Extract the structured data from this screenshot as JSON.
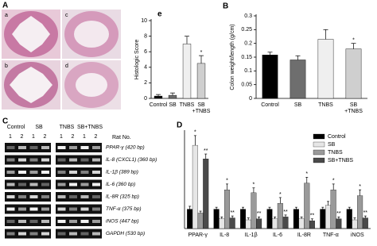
{
  "histology": {
    "panel_label": "A",
    "images": [
      "a",
      "b",
      "c",
      "d"
    ]
  },
  "gel": {
    "panel_label": "C",
    "groups": [
      "Control",
      "SB",
      "TNBS",
      "SB+TNBS"
    ],
    "lanes": [
      "1",
      "2",
      "1",
      "2",
      "1",
      "2",
      "1",
      "2"
    ],
    "rat_no": "Rat No.",
    "genes": [
      "PPAR-γ (420 bp)",
      "IL-8 (CXCL1) (360 bp)",
      "IL-1β (389 bp)",
      "IL-6 (360 bp)",
      "IL-8R (325 bp)",
      "TNF-α (375 bp)",
      "iNOS (447 bp)",
      "GAPDH (530 bp)"
    ]
  },
  "chart_data": [
    {
      "type": "bar",
      "panel_label": "e",
      "y_label": "Histologic Score",
      "categories": [
        "Control",
        "SB",
        "TNBS",
        "SB\n+TNBS"
      ],
      "values": [
        0.3,
        0.4,
        7,
        4.5
      ],
      "errors": [
        0.2,
        0.3,
        1.0,
        1.0
      ],
      "colors": [
        "#000000",
        "#6e6e6e",
        "#efefef",
        "#cfcfcf"
      ],
      "ylim": [
        0,
        10
      ],
      "yticks": [
        0,
        2,
        4,
        6,
        8,
        10
      ],
      "annotations": [
        {
          "text": "*",
          "index": 3
        }
      ]
    },
    {
      "type": "bar",
      "panel_label": "B",
      "y_label": "Colon weight/length (g/cm)",
      "categories": [
        "Control",
        "SB",
        "TNBS",
        "SB\n+TNBS"
      ],
      "values": [
        0.158,
        0.14,
        0.215,
        0.18
      ],
      "errors": [
        0.01,
        0.015,
        0.035,
        0.02
      ],
      "colors": [
        "#000000",
        "#6e6e6e",
        "#efefef",
        "#cfcfcf"
      ],
      "ylim": [
        0,
        0.3
      ],
      "yticks": [
        0,
        0.05,
        0.1,
        0.15,
        0.2,
        0.25,
        0.3
      ],
      "annotations": [
        {
          "text": "*",
          "index": 3
        }
      ]
    },
    {
      "type": "bar",
      "panel_label": "D",
      "categories": [
        "PPAR-γ",
        "IL-8",
        "IL-1β",
        "IL-6",
        "IL-8R",
        "TNF-α",
        "iNOS"
      ],
      "ylim": [
        0,
        5
      ],
      "series": [
        {
          "name": "Control",
          "color": "#000000",
          "values": [
            1,
            1,
            1,
            1,
            1,
            1,
            1
          ],
          "errors": [
            0.15,
            0.1,
            0.1,
            0.1,
            0.1,
            0.1,
            0.1
          ]
        },
        {
          "name": "SB",
          "color": "#e6e6e6",
          "values": [
            4.3,
            0.5,
            0.45,
            0.5,
            0.5,
            1.2,
            0.45
          ],
          "errors": [
            0.5,
            0.1,
            0.1,
            0.1,
            0.1,
            0.2,
            0.1
          ]
        },
        {
          "name": "TNBS",
          "color": "#9a9a9a",
          "values": [
            0.8,
            2.0,
            1.85,
            1.3,
            2.35,
            2.0,
            1.7
          ],
          "errors": [
            0.1,
            0.3,
            0.25,
            0.3,
            0.3,
            0.3,
            0.3
          ]
        },
        {
          "name": "SB+TNBS",
          "color": "#4a4a4a",
          "values": [
            3.6,
            0.55,
            0.5,
            0.6,
            0.4,
            0.5,
            0.55
          ],
          "errors": [
            0.25,
            0.1,
            0.1,
            0.1,
            0.1,
            0.1,
            0.1
          ]
        }
      ],
      "annotations": [
        {
          "text": "*",
          "series": 1,
          "index": 0
        },
        {
          "text": "**",
          "series": 3,
          "index": 0
        },
        {
          "text": "*",
          "series": 2,
          "index": 1
        },
        {
          "text": "**",
          "series": 3,
          "index": 1
        },
        {
          "text": "*",
          "series": 2,
          "index": 2
        },
        {
          "text": "**",
          "series": 3,
          "index": 2
        },
        {
          "text": "*",
          "series": 2,
          "index": 3
        },
        {
          "text": "**",
          "series": 3,
          "index": 3
        },
        {
          "text": "*",
          "series": 2,
          "index": 4
        },
        {
          "text": "**",
          "series": 3,
          "index": 4
        },
        {
          "text": "*",
          "series": 2,
          "index": 5
        },
        {
          "text": "**",
          "series": 3,
          "index": 5
        },
        {
          "text": "*",
          "series": 2,
          "index": 6
        },
        {
          "text": "**",
          "series": 3,
          "index": 6
        }
      ]
    }
  ]
}
